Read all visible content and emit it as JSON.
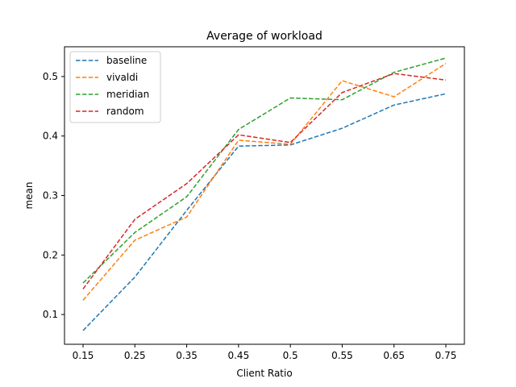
{
  "chart_data": {
    "type": "line",
    "title": "Average of workload",
    "xlabel": "Client Ratio",
    "ylabel": "mean",
    "categories": [
      "0.15",
      "0.25",
      "0.35",
      "0.45",
      "0.5",
      "0.55",
      "0.65",
      "0.75"
    ],
    "ylim": [
      0.05,
      0.55
    ],
    "yticks": [
      "0.1",
      "0.2",
      "0.3",
      "0.4",
      "0.5"
    ],
    "grid": false,
    "legend_position": "top-left",
    "line_style": "dashed",
    "series": [
      {
        "name": "baseline",
        "color": "#1f77b4",
        "values": [
          0.073,
          0.163,
          0.275,
          0.383,
          0.385,
          0.413,
          0.452,
          0.471
        ]
      },
      {
        "name": "vivaldi",
        "color": "#ff7f0e",
        "values": [
          0.124,
          0.225,
          0.264,
          0.393,
          0.386,
          0.493,
          0.466,
          0.522
        ]
      },
      {
        "name": "meridian",
        "color": "#2ca02c",
        "values": [
          0.153,
          0.238,
          0.298,
          0.411,
          0.464,
          0.461,
          0.507,
          0.531
        ]
      },
      {
        "name": "random",
        "color": "#d62728",
        "values": [
          0.143,
          0.26,
          0.32,
          0.402,
          0.389,
          0.473,
          0.505,
          0.494
        ]
      }
    ]
  }
}
